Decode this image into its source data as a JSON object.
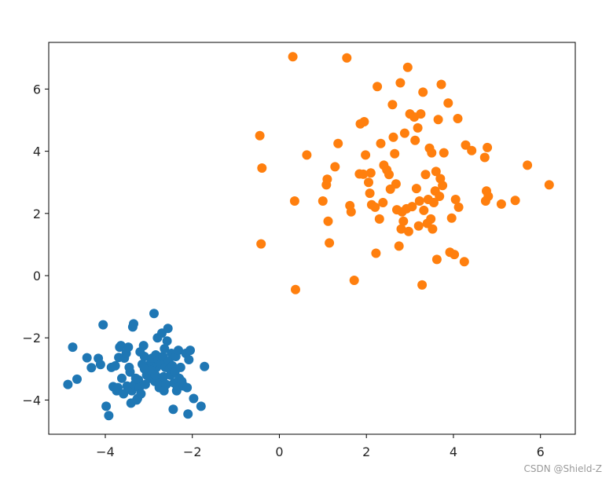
{
  "watermark": "CSDN @Shield-Z",
  "chart_data": {
    "type": "scatter",
    "title": "",
    "xlabel": "",
    "ylabel": "",
    "xlim": [
      -5.3,
      6.8
    ],
    "ylim": [
      -5.1,
      7.5
    ],
    "grid": false,
    "xticks": [
      -4,
      -2,
      0,
      2,
      4,
      6
    ],
    "xtick_labels": [
      "−4",
      "−2",
      "0",
      "2",
      "4",
      "6"
    ],
    "yticks": [
      -4,
      -2,
      0,
      2,
      4,
      6
    ],
    "ytick_labels": [
      "−4",
      "−2",
      "0",
      "2",
      "4",
      "6"
    ],
    "series": [
      {
        "color": "#1f77b4",
        "points": [
          [
            -4.86,
            -3.5
          ],
          [
            -4.75,
            -2.3
          ],
          [
            -4.65,
            -3.33
          ],
          [
            -4.42,
            -2.64
          ],
          [
            -4.32,
            -2.96
          ],
          [
            -4.16,
            -2.66
          ],
          [
            -4.11,
            -2.86
          ],
          [
            -4.05,
            -1.58
          ],
          [
            -3.98,
            -4.2
          ],
          [
            -3.92,
            -4.5
          ],
          [
            -3.86,
            -2.95
          ],
          [
            -3.82,
            -3.57
          ],
          [
            -3.77,
            -2.9
          ],
          [
            -3.74,
            -3.7
          ],
          [
            -3.71,
            -3.6
          ],
          [
            -3.69,
            -2.63
          ],
          [
            -3.67,
            -2.3
          ],
          [
            -3.64,
            -2.25
          ],
          [
            -3.62,
            -3.3
          ],
          [
            -3.58,
            -3.8
          ],
          [
            -3.56,
            -2.65
          ],
          [
            -3.52,
            -2.5
          ],
          [
            -3.5,
            -3.55
          ],
          [
            -3.47,
            -2.3
          ],
          [
            -3.43,
            -3.1
          ],
          [
            -3.41,
            -4.1
          ],
          [
            -3.39,
            -3.7
          ],
          [
            -3.37,
            -1.65
          ],
          [
            -3.35,
            -1.55
          ],
          [
            -3.33,
            -3.5
          ],
          [
            -3.3,
            -3.3
          ],
          [
            -3.28,
            -4.0
          ],
          [
            -3.26,
            -3.95
          ],
          [
            -3.24,
            -3.35
          ],
          [
            -3.22,
            -3.6
          ],
          [
            -3.2,
            -2.45
          ],
          [
            -3.18,
            -3.8
          ],
          [
            -3.15,
            -2.85
          ],
          [
            -3.12,
            -2.25
          ],
          [
            -3.1,
            -2.6
          ],
          [
            -3.08,
            -3.5
          ],
          [
            -3.05,
            -3.2
          ],
          [
            -3.02,
            -2.9
          ],
          [
            -2.98,
            -3.3
          ],
          [
            -2.95,
            -2.8
          ],
          [
            -2.92,
            -2.65
          ],
          [
            -2.9,
            -3.1
          ],
          [
            -2.88,
            -1.22
          ],
          [
            -2.86,
            -3.4
          ],
          [
            -2.84,
            -2.55
          ],
          [
            -2.82,
            -2.95
          ],
          [
            -2.8,
            -2.0
          ],
          [
            -2.78,
            -2.7
          ],
          [
            -2.76,
            -3.6
          ],
          [
            -2.74,
            -3.4
          ],
          [
            -2.72,
            -2.85
          ],
          [
            -2.7,
            -1.85
          ],
          [
            -2.68,
            -2.6
          ],
          [
            -2.66,
            -3.25
          ],
          [
            -2.64,
            -2.35
          ],
          [
            -2.62,
            -2.95
          ],
          [
            -2.6,
            -3.5
          ],
          [
            -2.58,
            -2.1
          ],
          [
            -2.56,
            -1.7
          ],
          [
            -2.54,
            -2.75
          ],
          [
            -2.52,
            -3.0
          ],
          [
            -2.5,
            -3.2
          ],
          [
            -2.48,
            -2.5
          ],
          [
            -2.46,
            -2.9
          ],
          [
            -2.44,
            -4.3
          ],
          [
            -2.42,
            -3.45
          ],
          [
            -2.4,
            -3.1
          ],
          [
            -2.38,
            -2.6
          ],
          [
            -2.36,
            -3.7
          ],
          [
            -2.34,
            -3.6
          ],
          [
            -2.32,
            -2.4
          ],
          [
            -2.3,
            -3.3
          ],
          [
            -2.27,
            -2.95
          ],
          [
            -2.24,
            -3.4
          ],
          [
            -2.2,
            -3.55
          ],
          [
            -2.15,
            -2.5
          ],
          [
            -2.12,
            -3.6
          ],
          [
            -2.1,
            -4.45
          ],
          [
            -2.08,
            -2.7
          ],
          [
            -2.05,
            -2.4
          ],
          [
            -1.97,
            -3.95
          ],
          [
            -1.8,
            -4.2
          ],
          [
            -1.72,
            -2.92
          ],
          [
            -2.95,
            -3.05
          ],
          [
            -3.45,
            -2.95
          ],
          [
            -2.65,
            -3.7
          ],
          [
            -3.1,
            -3.0
          ],
          [
            -2.85,
            -3.2
          ]
        ]
      },
      {
        "color": "#ff7f0e",
        "points": [
          [
            -0.45,
            4.5
          ],
          [
            -0.4,
            3.46
          ],
          [
            -0.42,
            1.02
          ],
          [
            0.31,
            7.04
          ],
          [
            0.35,
            2.4
          ],
          [
            0.37,
            -0.45
          ],
          [
            0.63,
            3.88
          ],
          [
            1.0,
            2.4
          ],
          [
            1.08,
            2.92
          ],
          [
            1.1,
            3.1
          ],
          [
            1.12,
            1.75
          ],
          [
            1.15,
            1.05
          ],
          [
            1.28,
            3.5
          ],
          [
            1.35,
            4.25
          ],
          [
            1.55,
            7.0
          ],
          [
            1.62,
            2.25
          ],
          [
            1.65,
            2.05
          ],
          [
            1.72,
            -0.15
          ],
          [
            1.84,
            3.27
          ],
          [
            1.86,
            4.88
          ],
          [
            1.93,
            3.26
          ],
          [
            1.95,
            4.95
          ],
          [
            1.98,
            3.88
          ],
          [
            2.05,
            3.0
          ],
          [
            2.08,
            2.65
          ],
          [
            2.12,
            2.28
          ],
          [
            2.2,
            2.2
          ],
          [
            2.22,
            0.72
          ],
          [
            2.25,
            6.08
          ],
          [
            2.3,
            1.82
          ],
          [
            2.33,
            4.25
          ],
          [
            2.38,
            2.35
          ],
          [
            2.4,
            3.55
          ],
          [
            2.47,
            3.4
          ],
          [
            2.52,
            3.25
          ],
          [
            2.55,
            2.78
          ],
          [
            2.6,
            5.5
          ],
          [
            2.62,
            4.45
          ],
          [
            2.65,
            3.92
          ],
          [
            2.7,
            2.12
          ],
          [
            2.75,
            0.95
          ],
          [
            2.78,
            6.2
          ],
          [
            2.8,
            1.5
          ],
          [
            2.82,
            2.05
          ],
          [
            2.85,
            1.75
          ],
          [
            2.88,
            4.58
          ],
          [
            2.92,
            2.15
          ],
          [
            2.95,
            6.7
          ],
          [
            2.97,
            1.42
          ],
          [
            3.0,
            5.2
          ],
          [
            3.05,
            2.22
          ],
          [
            3.1,
            5.1
          ],
          [
            3.12,
            4.35
          ],
          [
            3.15,
            2.8
          ],
          [
            3.18,
            4.75
          ],
          [
            3.2,
            1.6
          ],
          [
            3.22,
            2.4
          ],
          [
            3.25,
            5.2
          ],
          [
            3.28,
            -0.3
          ],
          [
            3.3,
            5.9
          ],
          [
            3.32,
            2.1
          ],
          [
            3.36,
            3.25
          ],
          [
            3.4,
            1.68
          ],
          [
            3.42,
            2.45
          ],
          [
            3.45,
            4.1
          ],
          [
            3.48,
            1.82
          ],
          [
            3.5,
            3.95
          ],
          [
            3.52,
            1.5
          ],
          [
            3.55,
            2.35
          ],
          [
            3.58,
            2.72
          ],
          [
            3.6,
            3.35
          ],
          [
            3.62,
            0.52
          ],
          [
            3.65,
            5.02
          ],
          [
            3.68,
            2.55
          ],
          [
            3.7,
            3.12
          ],
          [
            3.72,
            6.15
          ],
          [
            3.75,
            2.9
          ],
          [
            3.78,
            3.95
          ],
          [
            3.88,
            5.55
          ],
          [
            3.92,
            0.75
          ],
          [
            3.96,
            1.85
          ],
          [
            4.02,
            0.68
          ],
          [
            4.05,
            2.45
          ],
          [
            4.1,
            5.05
          ],
          [
            4.12,
            2.2
          ],
          [
            4.25,
            0.45
          ],
          [
            4.28,
            4.2
          ],
          [
            4.42,
            4.02
          ],
          [
            4.72,
            3.8
          ],
          [
            4.74,
            2.4
          ],
          [
            4.76,
            2.72
          ],
          [
            4.78,
            4.12
          ],
          [
            4.8,
            2.55
          ],
          [
            5.1,
            2.3
          ],
          [
            5.42,
            2.42
          ],
          [
            5.7,
            3.55
          ],
          [
            6.2,
            2.92
          ],
          [
            2.1,
            3.3
          ],
          [
            2.68,
            2.95
          ]
        ]
      }
    ]
  }
}
